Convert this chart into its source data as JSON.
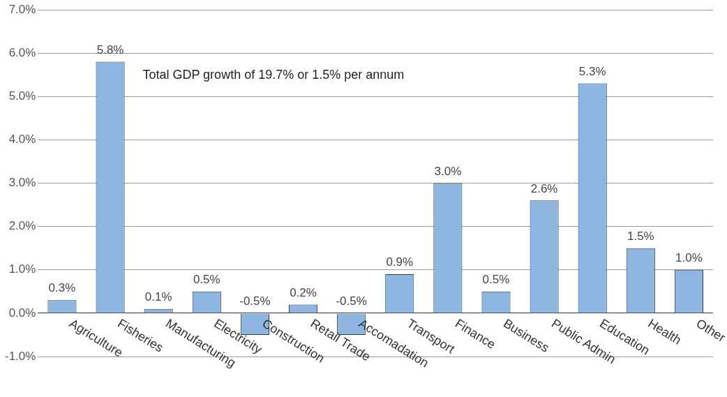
{
  "chart_data": {
    "type": "bar",
    "categories": [
      "Agriculture",
      "Fisheries",
      "Manufacturing",
      "Electricity",
      "Construction",
      "Retail Trade",
      "Accomadation",
      "Transport",
      "Finance",
      "Business",
      "Public Admin",
      "Education",
      "Health",
      "Other"
    ],
    "values": [
      0.3,
      5.8,
      0.1,
      0.5,
      -0.5,
      0.2,
      -0.5,
      0.9,
      3.0,
      0.5,
      2.6,
      5.3,
      1.5,
      1.0
    ],
    "value_labels": [
      "0.3%",
      "5.8%",
      "0.1%",
      "0.5%",
      "-0.5%",
      "0.2%",
      "-0.5%",
      "0.9%",
      "3.0%",
      "0.5%",
      "2.6%",
      "5.3%",
      "1.5%",
      "1.0%"
    ],
    "color": "#8db7e0",
    "ylim": [
      -1,
      7
    ],
    "yticks": [
      {
        "value": -1,
        "label": "-1.0%"
      },
      {
        "value": 0,
        "label": "0.0%"
      },
      {
        "value": 1,
        "label": "1.0%"
      },
      {
        "value": 2,
        "label": "2.0%"
      },
      {
        "value": 3,
        "label": "3.0%"
      },
      {
        "value": 4,
        "label": "4.0%"
      },
      {
        "value": 5,
        "label": "5.0%"
      },
      {
        "value": 6,
        "label": "6.0%"
      },
      {
        "value": 7,
        "label": "7.0%"
      }
    ],
    "grid": "y",
    "annotations": [
      "Total GDP growth of 19.7% or 1.5% per annum"
    ]
  }
}
